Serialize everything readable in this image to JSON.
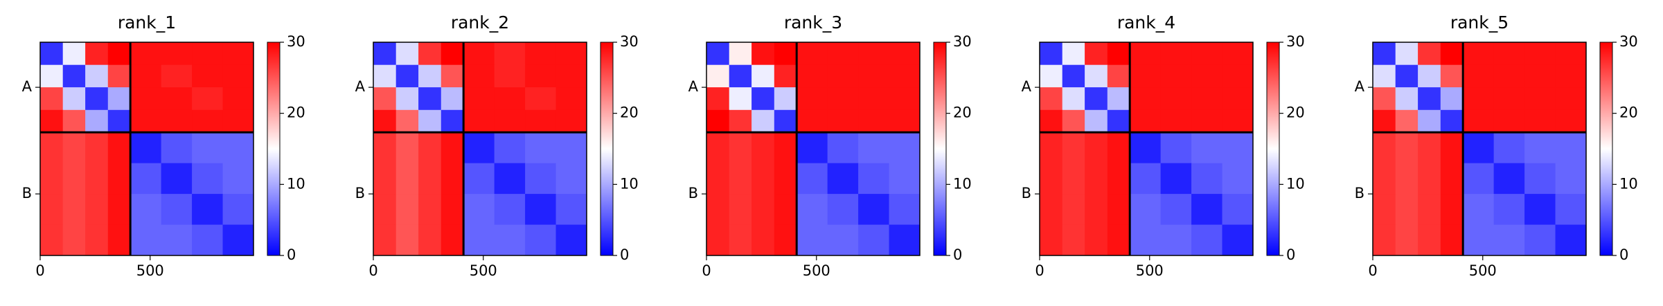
{
  "chart_data": [
    {
      "type": "heatmap",
      "title": "rank_1",
      "bins": [
        0,
        103,
        205,
        308,
        410,
        550,
        690,
        830,
        970
      ],
      "values": [
        [
          3,
          14,
          28,
          30,
          29,
          29,
          29,
          29
        ],
        [
          14,
          3,
          12,
          26,
          29,
          28,
          29,
          29
        ],
        [
          26,
          12,
          3,
          10,
          29,
          29,
          28,
          29
        ],
        [
          29,
          25,
          10,
          3,
          29,
          29,
          29,
          29
        ],
        [
          27,
          26,
          27,
          29,
          2,
          5,
          6,
          6
        ],
        [
          27,
          26,
          27,
          29,
          5,
          2,
          5,
          6
        ],
        [
          27,
          26,
          27,
          29,
          6,
          5,
          2,
          5
        ],
        [
          27,
          26,
          27,
          29,
          6,
          6,
          5,
          2
        ]
      ],
      "xlim": [
        0,
        970
      ],
      "ylim": [
        970,
        0
      ],
      "xticks": [
        0,
        500
      ],
      "yticks": [
        {
          "value": 205,
          "label": "A"
        },
        {
          "value": 690,
          "label": "B"
        }
      ],
      "chain_breaks": [
        410
      ],
      "vlim": [
        0,
        30
      ],
      "vticks": [
        0,
        10,
        20,
        30
      ],
      "colors": [
        "#0000ff",
        "#ffffff",
        "#ff0000"
      ]
    },
    {
      "type": "heatmap",
      "title": "rank_2",
      "bins": [
        0,
        103,
        205,
        308,
        410,
        550,
        690,
        830,
        970
      ],
      "values": [
        [
          3,
          13,
          27,
          30,
          29,
          28,
          29,
          29
        ],
        [
          13,
          3,
          12,
          25,
          29,
          28,
          29,
          29
        ],
        [
          25,
          12,
          3,
          11,
          29,
          29,
          28,
          29
        ],
        [
          29,
          24,
          11,
          3,
          29,
          29,
          29,
          29
        ],
        [
          27,
          25,
          27,
          29,
          2,
          5,
          6,
          6
        ],
        [
          27,
          25,
          27,
          29,
          5,
          2,
          5,
          6
        ],
        [
          27,
          25,
          27,
          29,
          6,
          5,
          2,
          5
        ],
        [
          27,
          25,
          27,
          29,
          6,
          6,
          5,
          2
        ]
      ],
      "xlim": [
        0,
        970
      ],
      "ylim": [
        970,
        0
      ],
      "xticks": [
        0,
        500
      ],
      "yticks": [
        {
          "value": 205,
          "label": "A"
        },
        {
          "value": 690,
          "label": "B"
        }
      ],
      "chain_breaks": [
        410
      ],
      "vlim": [
        0,
        30
      ],
      "vticks": [
        0,
        10,
        20,
        30
      ],
      "colors": [
        "#0000ff",
        "#ffffff",
        "#ff0000"
      ]
    },
    {
      "type": "heatmap",
      "title": "rank_3",
      "bins": [
        0,
        103,
        205,
        308,
        410,
        550,
        690,
        830,
        970
      ],
      "values": [
        [
          3,
          16,
          29,
          30,
          29,
          29,
          29,
          29
        ],
        [
          16,
          3,
          14,
          28,
          29,
          29,
          29,
          29
        ],
        [
          28,
          14,
          3,
          12,
          29,
          29,
          29,
          29
        ],
        [
          30,
          27,
          12,
          3,
          29,
          29,
          29,
          29
        ],
        [
          28,
          27,
          28,
          29,
          2,
          5,
          6,
          6
        ],
        [
          28,
          27,
          28,
          29,
          5,
          2,
          5,
          6
        ],
        [
          28,
          27,
          28,
          29,
          6,
          5,
          2,
          5
        ],
        [
          28,
          27,
          28,
          29,
          6,
          6,
          5,
          2
        ]
      ],
      "xlim": [
        0,
        970
      ],
      "ylim": [
        970,
        0
      ],
      "xticks": [
        0,
        500
      ],
      "yticks": [
        {
          "value": 205,
          "label": "A"
        },
        {
          "value": 690,
          "label": "B"
        }
      ],
      "chain_breaks": [
        410
      ],
      "vlim": [
        0,
        30
      ],
      "vticks": [
        0,
        10,
        20,
        30
      ],
      "colors": [
        "#0000ff",
        "#ffffff",
        "#ff0000"
      ]
    },
    {
      "type": "heatmap",
      "title": "rank_4",
      "bins": [
        0,
        103,
        205,
        308,
        410,
        550,
        690,
        830,
        970
      ],
      "values": [
        [
          3,
          14,
          28,
          30,
          29,
          29,
          29,
          29
        ],
        [
          14,
          3,
          13,
          26,
          29,
          29,
          29,
          29
        ],
        [
          26,
          13,
          3,
          11,
          29,
          29,
          29,
          29
        ],
        [
          29,
          25,
          11,
          3,
          29,
          29,
          29,
          29
        ],
        [
          28,
          27,
          28,
          29,
          2,
          5,
          6,
          6
        ],
        [
          28,
          27,
          28,
          29,
          5,
          2,
          5,
          6
        ],
        [
          28,
          27,
          28,
          29,
          6,
          5,
          2,
          5
        ],
        [
          28,
          27,
          28,
          29,
          6,
          6,
          5,
          2
        ]
      ],
      "xlim": [
        0,
        970
      ],
      "ylim": [
        970,
        0
      ],
      "xticks": [
        0,
        500
      ],
      "yticks": [
        {
          "value": 205,
          "label": "A"
        },
        {
          "value": 690,
          "label": "B"
        }
      ],
      "chain_breaks": [
        410
      ],
      "vlim": [
        0,
        30
      ],
      "vticks": [
        0,
        10,
        20,
        30
      ],
      "colors": [
        "#0000ff",
        "#ffffff",
        "#ff0000"
      ]
    },
    {
      "type": "heatmap",
      "title": "rank_5",
      "bins": [
        0,
        103,
        205,
        308,
        410,
        550,
        690,
        830,
        970
      ],
      "values": [
        [
          3,
          13,
          27,
          30,
          29,
          29,
          29,
          29
        ],
        [
          13,
          3,
          12,
          25,
          29,
          29,
          29,
          29
        ],
        [
          25,
          12,
          3,
          10,
          29,
          29,
          29,
          29
        ],
        [
          29,
          24,
          10,
          3,
          29,
          29,
          29,
          29
        ],
        [
          27,
          26,
          27,
          29,
          2,
          5,
          6,
          6
        ],
        [
          27,
          26,
          27,
          29,
          5,
          2,
          5,
          6
        ],
        [
          27,
          26,
          27,
          29,
          6,
          5,
          2,
          5
        ],
        [
          27,
          26,
          27,
          29,
          6,
          6,
          5,
          2
        ]
      ],
      "xlim": [
        0,
        970
      ],
      "ylim": [
        970,
        0
      ],
      "xticks": [
        0,
        500
      ],
      "yticks": [
        {
          "value": 205,
          "label": "A"
        },
        {
          "value": 690,
          "label": "B"
        }
      ],
      "chain_breaks": [
        410
      ],
      "vlim": [
        0,
        30
      ],
      "vticks": [
        0,
        10,
        20,
        30
      ],
      "colors": [
        "#0000ff",
        "#ffffff",
        "#ff0000"
      ]
    }
  ]
}
